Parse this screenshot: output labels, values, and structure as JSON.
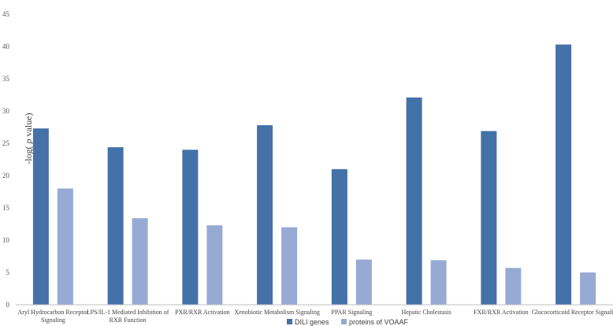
{
  "chart_data": {
    "type": "bar",
    "title": "",
    "xlabel": "",
    "ylabel_prefix": "-log( ",
    "ylabel_italic": "p",
    "ylabel_suffix": " value)",
    "ylim": [
      0,
      45
    ],
    "yticks": [
      0,
      5,
      10,
      15,
      20,
      25,
      30,
      35,
      40,
      45
    ],
    "grid": false,
    "legend_position": "bottom",
    "categories": [
      [
        "Aryl Hydrocarbon Receptor",
        "Signaling"
      ],
      [
        "LPS/IL-1 Mediated Inhibition of",
        "RXR Function"
      ],
      [
        "PXR/RXR Activation"
      ],
      [
        "Xenobiotic Metabolism Signaling"
      ],
      [
        "PPAR Signaling"
      ],
      [
        "Hepatic Cholestasis"
      ],
      [
        "FXR/RXR Activation"
      ],
      [
        "Glucocorticoid Receptor Signaling"
      ]
    ],
    "series": [
      {
        "name": "DILI genes",
        "color": "#4472a8",
        "values": [
          27.3,
          24.4,
          24.0,
          27.8,
          21.0,
          32.1,
          26.9,
          40.3
        ]
      },
      {
        "name": "proteins of VOAAF",
        "color": "#97aad4",
        "values": [
          18.0,
          13.4,
          12.3,
          12.0,
          7.0,
          6.9,
          5.7,
          5.0
        ]
      }
    ]
  }
}
